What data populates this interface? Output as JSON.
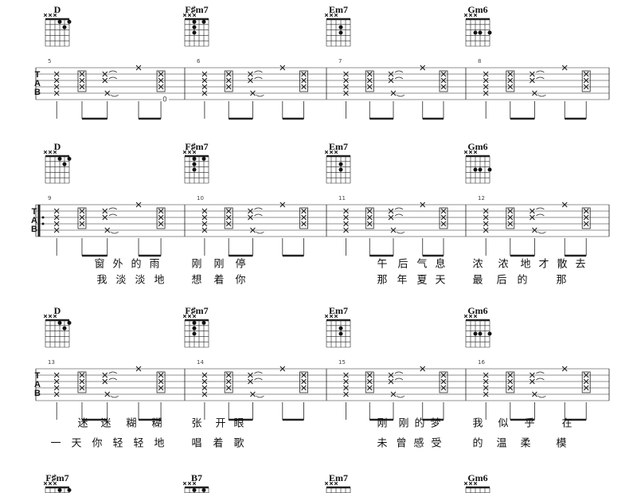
{
  "systems": [
    {
      "chords": [
        "D",
        "F♯m7",
        "Em7",
        "Gm6"
      ],
      "measures": [
        "5",
        "6",
        "7",
        "8"
      ],
      "tab": [
        "T",
        "A",
        "B"
      ],
      "note": "0",
      "lyrics": []
    },
    {
      "chords": [
        "D",
        "F♯m7",
        "Em7",
        "Gm6"
      ],
      "measures": [
        "9",
        "10",
        "11",
        "12"
      ],
      "tab": [
        "T",
        "A",
        "B"
      ],
      "lyrics": [
        [
          "窗",
          "外",
          "的",
          "雨",
          "刚",
          "刚",
          "停",
          "午",
          "后",
          "气",
          "息",
          "浓",
          "浓",
          "地",
          "才",
          "散",
          "去"
        ],
        [
          "我",
          "淡",
          "淡",
          "地",
          "想",
          "着",
          "你",
          "那",
          "年",
          "夏",
          "天",
          "最",
          "后",
          "的",
          "那"
        ]
      ]
    },
    {
      "chords": [
        "D",
        "F♯m7",
        "Em7",
        "Gm6"
      ],
      "measures": [
        "13",
        "14",
        "15",
        "16"
      ],
      "tab": [
        "T",
        "A",
        "B"
      ],
      "lyrics": [
        [
          "迷",
          "迷",
          "糊",
          "糊",
          "张",
          "开",
          "眼",
          "刚",
          "刚",
          "的",
          "梦",
          "我",
          "似",
          "乎",
          "在"
        ],
        [
          "一",
          "天",
          "你",
          "轻",
          "轻",
          "地",
          "唱",
          "着",
          "歌",
          "未",
          "曾",
          "感",
          "受",
          "的",
          "温",
          "柔",
          "模"
        ]
      ]
    },
    {
      "chords": [
        "F♯m7",
        "B7",
        "Em7",
        "Gm6"
      ]
    }
  ]
}
